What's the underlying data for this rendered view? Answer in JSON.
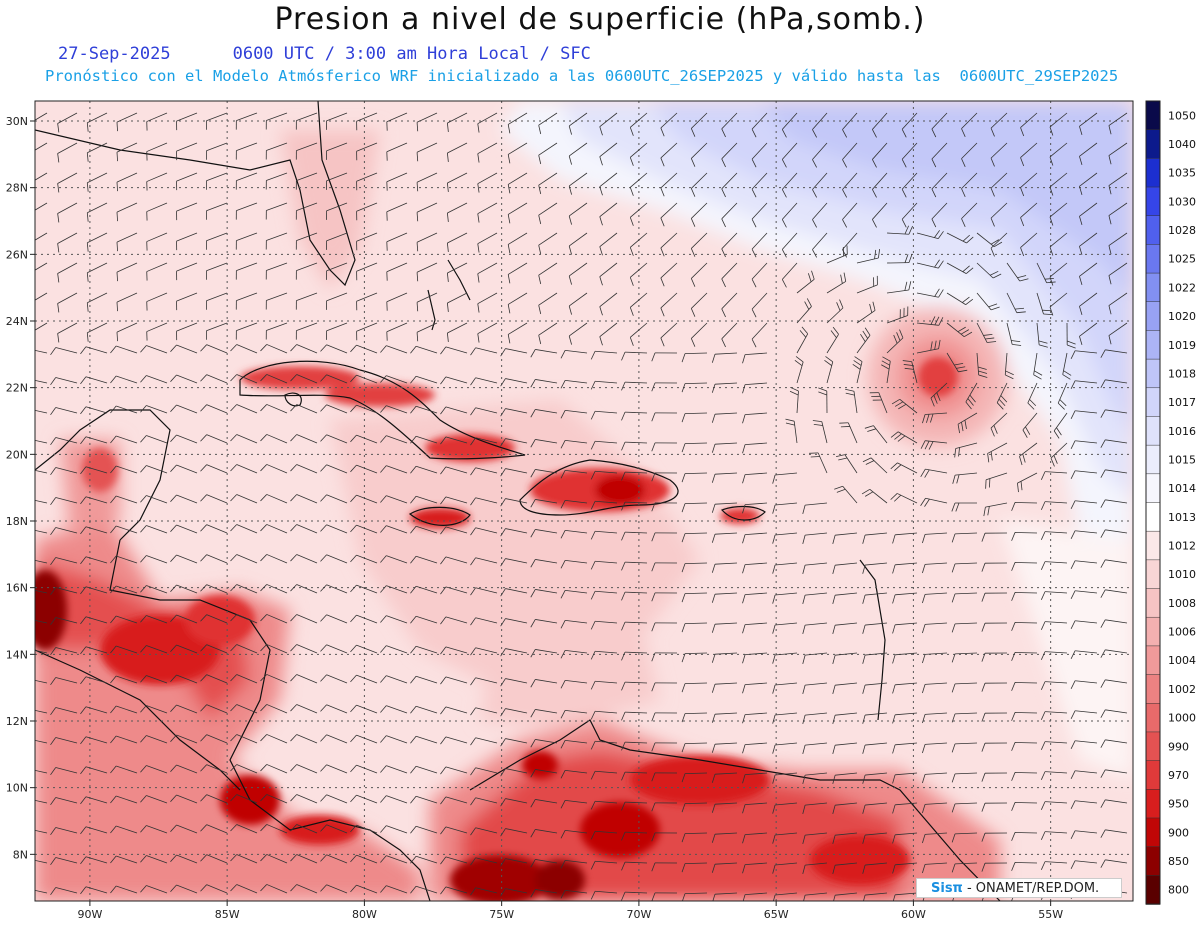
{
  "header": {
    "title": "Presion a nivel de superficie (hPa,somb.)",
    "date": "27-Sep-2025",
    "time_info": "0600 UTC / 3:00 am Hora Local / SFC",
    "model_info": "Pronóstico con el Modelo Atmósferico WRF inicializado a las 0600UTC_26SEP2025 y válido hasta las  0600UTC_29SEP2025"
  },
  "map": {
    "lon_range": [
      -92,
      -52
    ],
    "lat_range": [
      6.6,
      30.6
    ],
    "lon_ticks": [
      {
        "lon": -90,
        "label": "90W"
      },
      {
        "lon": -85,
        "label": "85W"
      },
      {
        "lon": -80,
        "label": "80W"
      },
      {
        "lon": -75,
        "label": "75W"
      },
      {
        "lon": -70,
        "label": "70W"
      },
      {
        "lon": -65,
        "label": "65W"
      },
      {
        "lon": -60,
        "label": "60W"
      },
      {
        "lon": -55,
        "label": "55W"
      }
    ],
    "lat_ticks": [
      {
        "lat": 30,
        "label": "30N"
      },
      {
        "lat": 28,
        "label": "28N"
      },
      {
        "lat": 26,
        "label": "26N"
      },
      {
        "lat": 24,
        "label": "24N"
      },
      {
        "lat": 22,
        "label": "22N"
      },
      {
        "lat": 20,
        "label": "20N"
      },
      {
        "lat": 18,
        "label": "18N"
      },
      {
        "lat": 16,
        "label": "16N"
      },
      {
        "lat": 14,
        "label": "14N"
      },
      {
        "lat": 12,
        "label": "12N"
      },
      {
        "lat": 10,
        "label": "10N"
      },
      {
        "lat": 8,
        "label": "8N"
      }
    ],
    "grid": true,
    "low_center": {
      "lon": -59.4,
      "lat": 22.4
    }
  },
  "colorbar": {
    "levels": [
      "1050",
      "1040",
      "1035",
      "1030",
      "1028",
      "1025",
      "1022",
      "1020",
      "1019",
      "1018",
      "1017",
      "1016",
      "1015",
      "1014",
      "1013",
      "1012",
      "1010",
      "1008",
      "1006",
      "1004",
      "1002",
      "1000",
      "990",
      "970",
      "950",
      "900",
      "850",
      "800"
    ],
    "colors": [
      "#0a0a4a",
      "#0c1a8c",
      "#1c2fd0",
      "#3545e8",
      "#5060ee",
      "#6a78f0",
      "#8290f2",
      "#98a2f4",
      "#acb4f6",
      "#bfc5f8",
      "#d1d5fa",
      "#dfe2fb",
      "#ebedfc",
      "#f6f6fd",
      "#ffffff",
      "#fbe8e8",
      "#f8d6d6",
      "#f6c4c4",
      "#f3b0b0",
      "#f09a9a",
      "#ec8282",
      "#e86a6a",
      "#e45252",
      "#e03a3a",
      "#d81e1e",
      "#c00606",
      "#8c0000",
      "#5a0000"
    ]
  },
  "credit": {
    "logo": "Sisπ",
    "text": "- ONAMET/REP.DOM."
  }
}
